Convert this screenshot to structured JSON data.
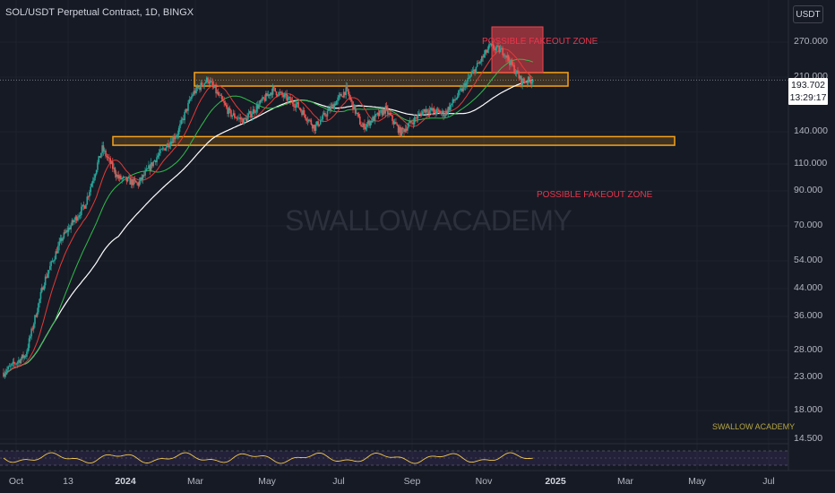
{
  "header": {
    "symbol_title": "SOL/USDT Perpetual Contract, 1D, BINGX",
    "currency_label": "USDT"
  },
  "price_axis": {
    "labels": [
      "270.000",
      "210.000",
      "140.000",
      "110.000",
      "90.000",
      "70.000",
      "54.000",
      "44.000",
      "36.000",
      "28.000",
      "23.000",
      "18.000",
      "14.500"
    ],
    "last_price": "193.702",
    "countdown": "13:29:17"
  },
  "time_axis": {
    "labels": [
      "Oct",
      "13",
      "2024",
      "Mar",
      "May",
      "Jul",
      "Sep",
      "Nov",
      "2025",
      "Mar",
      "May",
      "Jul"
    ]
  },
  "annotations": {
    "fakeout_top": "POSSIBLE FAKEOUT ZONE",
    "fakeout_bottom": "POSSIBLE FAKEOUT ZONE"
  },
  "watermark": "SWALLOW ACADEMY",
  "footer_watermark": "SWALLOW ACADEMY",
  "colors": {
    "background": "#161a25",
    "up_candle": "#26a69a",
    "down_candle": "#ef5350",
    "zone_fill": "#f7a21b",
    "fakeout_fill": "#f0454f",
    "ema_fast": "#e53935",
    "ema_mid": "#2ebd4a",
    "ema_slow": "#ffffff",
    "rsi_line": "#f2c94c"
  },
  "chart_data": {
    "type": "candlestick",
    "scale": "log",
    "ylim": [
      14.5,
      290
    ],
    "x_range": [
      "2023-10-01",
      "2025-07-31"
    ],
    "anchors": [
      {
        "date": "2023-10-01",
        "close": 21
      },
      {
        "date": "2023-10-20",
        "close": 24
      },
      {
        "date": "2023-11-05",
        "close": 42
      },
      {
        "date": "2023-11-20",
        "close": 58
      },
      {
        "date": "2023-12-10",
        "close": 75
      },
      {
        "date": "2023-12-25",
        "close": 115
      },
      {
        "date": "2024-01-08",
        "close": 92
      },
      {
        "date": "2024-01-25",
        "close": 88
      },
      {
        "date": "2024-02-10",
        "close": 108
      },
      {
        "date": "2024-02-28",
        "close": 130
      },
      {
        "date": "2024-03-12",
        "close": 175
      },
      {
        "date": "2024-03-25",
        "close": 195
      },
      {
        "date": "2024-04-13",
        "close": 150
      },
      {
        "date": "2024-04-25",
        "close": 142
      },
      {
        "date": "2024-05-20",
        "close": 180
      },
      {
        "date": "2024-06-10",
        "close": 160
      },
      {
        "date": "2024-06-25",
        "close": 135
      },
      {
        "date": "2024-07-22",
        "close": 180
      },
      {
        "date": "2024-08-05",
        "close": 135
      },
      {
        "date": "2024-08-25",
        "close": 155
      },
      {
        "date": "2024-09-07",
        "close": 130
      },
      {
        "date": "2024-09-28",
        "close": 155
      },
      {
        "date": "2024-10-15",
        "close": 150
      },
      {
        "date": "2024-10-29",
        "close": 178
      },
      {
        "date": "2024-11-10",
        "close": 210
      },
      {
        "date": "2024-11-23",
        "close": 250
      },
      {
        "date": "2024-12-05",
        "close": 240
      },
      {
        "date": "2024-12-20",
        "close": 192
      },
      {
        "date": "2024-12-30",
        "close": 193.7
      }
    ],
    "resistance_zone": [
      185,
      205
    ],
    "support_zone": [
      118,
      126
    ],
    "fakeout_zone": [
      205,
      290
    ],
    "last_price": 193.702
  }
}
